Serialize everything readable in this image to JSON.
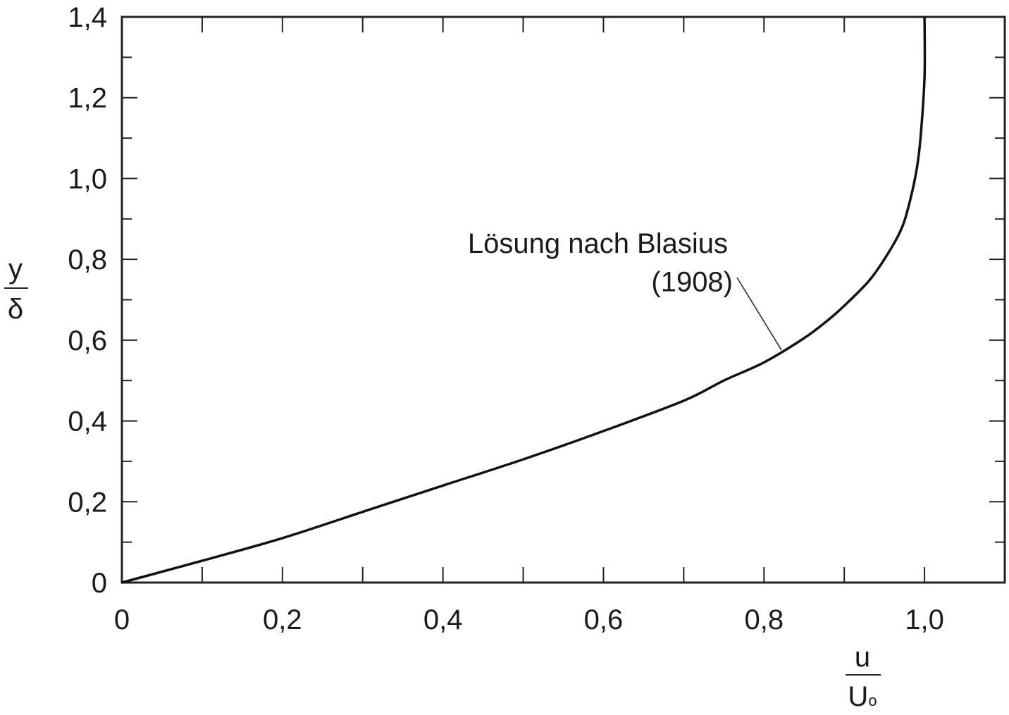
{
  "chart_data": {
    "type": "line",
    "title": "",
    "xlabel": {
      "numerator": "u",
      "denominator": "U",
      "denominator_subscript": "o"
    },
    "ylabel": {
      "numerator": "y",
      "denominator": "δ"
    },
    "xlim": [
      0,
      1.1
    ],
    "ylim": [
      0,
      1.4
    ],
    "xticks": [
      0,
      0.2,
      0.4,
      0.6,
      0.8,
      1.0
    ],
    "xtick_labels": [
      "0",
      "0,2",
      "0,4",
      "0,6",
      "0,8",
      "1,0"
    ],
    "xticks_minor": [
      0.1,
      0.3,
      0.5,
      0.7,
      0.9,
      1.1
    ],
    "yticks": [
      0,
      0.2,
      0.4,
      0.6,
      0.8,
      1.0,
      1.2,
      1.4
    ],
    "ytick_labels": [
      "0",
      "0,2",
      "0,4",
      "0,6",
      "0,8",
      "1,0",
      "1,2",
      "1,4"
    ],
    "yticks_minor": [
      0.1,
      0.3,
      0.5,
      0.7,
      0.9,
      1.1,
      1.3
    ],
    "grid": false,
    "series": [
      {
        "x": [
          0,
          0.1,
          0.2,
          0.3,
          0.4,
          0.5,
          0.6,
          0.7,
          0.75,
          0.8,
          0.85,
          0.88,
          0.9,
          0.93,
          0.95,
          0.97,
          0.98,
          0.99,
          0.995,
          1.0,
          1.0
        ],
        "y": [
          0,
          0.054,
          0.11,
          0.175,
          0.24,
          0.305,
          0.375,
          0.45,
          0.5,
          0.545,
          0.605,
          0.65,
          0.685,
          0.745,
          0.8,
          0.87,
          0.93,
          1.02,
          1.1,
          1.25,
          1.4
        ],
        "color": "#111111"
      }
    ],
    "annotations": [
      {
        "text": "Lösung nach Blasius",
        "x": 0.72,
        "y": 0.84
      },
      {
        "text": "(1908)",
        "x": 0.91,
        "y": 0.745
      },
      {
        "leader_from": [
          0.77,
          0.75
        ],
        "leader_to": [
          0.82,
          0.565
        ]
      }
    ]
  }
}
